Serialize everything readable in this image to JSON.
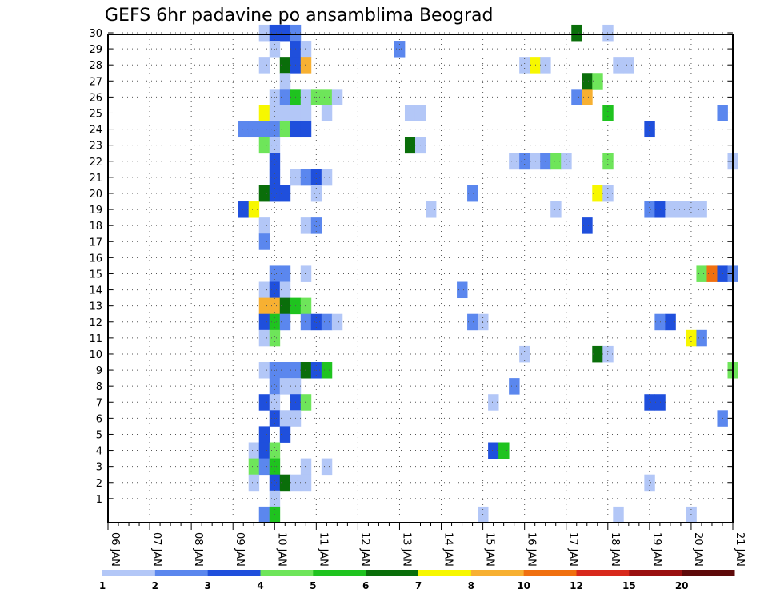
{
  "chart_data": {
    "type": "heatmap",
    "title": "GEFS 6hr padavine po ansamblima Beograd",
    "xlabel": "",
    "ylabel": "",
    "y_ticks": [
      "1",
      "2",
      "3",
      "4",
      "5",
      "6",
      "7",
      "8",
      "9",
      "10",
      "11",
      "12",
      "13",
      "14",
      "15",
      "16",
      "17",
      "18",
      "19",
      "20",
      "21",
      "22",
      "23",
      "24",
      "25",
      "26",
      "27",
      "28",
      "29",
      "30"
    ],
    "x_ticks": [
      "06 JAN",
      "07 JAN",
      "08 JAN",
      "09 JAN",
      "10 JAN",
      "11 JAN",
      "12 JAN",
      "13 JAN",
      "14 JAN",
      "15 JAN",
      "16 JAN",
      "17 JAN",
      "18 JAN",
      "19 JAN",
      "20 JAN",
      "21 JAN"
    ],
    "x_range_6h_steps": [
      0,
      60
    ],
    "y_range_members": [
      0,
      30
    ],
    "grid": true,
    "colorbar": {
      "levels": [
        "1",
        "2",
        "3",
        "4",
        "5",
        "6",
        "7",
        "8",
        "10",
        "12",
        "15",
        "20"
      ],
      "colors": [
        "#b3c7f7",
        "#5b87ee",
        "#1f4fdc",
        "#6ee55a",
        "#1fc31f",
        "#0a6e0a",
        "#f7f700",
        "#f7b032",
        "#f07010",
        "#d8291c",
        "#9a1010",
        "#5e0a0a"
      ]
    },
    "cells_format": "[x_6h_step, ensemble_member, color_class]",
    "cells": [
      [
        15,
        30,
        1
      ],
      [
        16,
        30,
        3
      ],
      [
        17,
        30,
        3
      ],
      [
        18,
        30,
        2
      ],
      [
        45,
        30,
        6
      ],
      [
        48,
        30,
        1
      ],
      [
        16,
        29,
        1
      ],
      [
        18,
        29,
        3
      ],
      [
        19,
        29,
        1
      ],
      [
        28,
        29,
        2
      ],
      [
        15,
        28,
        1
      ],
      [
        17,
        28,
        6
      ],
      [
        18,
        28,
        3
      ],
      [
        19,
        28,
        8
      ],
      [
        40,
        28,
        1
      ],
      [
        41,
        28,
        7
      ],
      [
        42,
        28,
        1
      ],
      [
        49,
        28,
        1
      ],
      [
        50,
        28,
        1
      ],
      [
        17,
        27,
        1
      ],
      [
        46,
        27,
        6
      ],
      [
        47,
        27,
        4
      ],
      [
        16,
        26,
        1
      ],
      [
        17,
        26,
        2
      ],
      [
        18,
        26,
        5
      ],
      [
        19,
        26,
        1
      ],
      [
        20,
        26,
        4
      ],
      [
        21,
        26,
        4
      ],
      [
        22,
        26,
        1
      ],
      [
        45,
        26,
        2
      ],
      [
        46,
        26,
        8
      ],
      [
        15,
        25,
        7
      ],
      [
        16,
        25,
        1
      ],
      [
        17,
        25,
        1
      ],
      [
        18,
        25,
        1
      ],
      [
        19,
        25,
        1
      ],
      [
        21,
        25,
        1
      ],
      [
        29,
        25,
        1
      ],
      [
        30,
        25,
        1
      ],
      [
        48,
        25,
        5
      ],
      [
        59,
        25,
        2
      ],
      [
        13,
        24,
        2
      ],
      [
        14,
        24,
        2
      ],
      [
        15,
        24,
        2
      ],
      [
        16,
        24,
        2
      ],
      [
        17,
        24,
        4
      ],
      [
        18,
        24,
        3
      ],
      [
        19,
        24,
        3
      ],
      [
        52,
        24,
        3
      ],
      [
        15,
        23,
        4
      ],
      [
        16,
        23,
        1
      ],
      [
        29,
        23,
        6
      ],
      [
        30,
        23,
        1
      ],
      [
        16,
        22,
        3
      ],
      [
        39,
        22,
        1
      ],
      [
        40,
        22,
        2
      ],
      [
        41,
        22,
        1
      ],
      [
        42,
        22,
        2
      ],
      [
        43,
        22,
        4
      ],
      [
        44,
        22,
        1
      ],
      [
        48,
        22,
        4
      ],
      [
        60,
        22,
        1
      ],
      [
        16,
        21,
        3
      ],
      [
        18,
        21,
        1
      ],
      [
        19,
        21,
        2
      ],
      [
        20,
        21,
        3
      ],
      [
        21,
        21,
        1
      ],
      [
        15,
        20,
        6
      ],
      [
        16,
        20,
        3
      ],
      [
        17,
        20,
        3
      ],
      [
        20,
        20,
        1
      ],
      [
        35,
        20,
        2
      ],
      [
        47,
        20,
        7
      ],
      [
        48,
        20,
        1
      ],
      [
        13,
        19,
        3
      ],
      [
        14,
        19,
        7
      ],
      [
        31,
        19,
        1
      ],
      [
        43,
        19,
        1
      ],
      [
        52,
        19,
        2
      ],
      [
        53,
        19,
        3
      ],
      [
        54,
        19,
        1
      ],
      [
        55,
        19,
        1
      ],
      [
        56,
        19,
        1
      ],
      [
        57,
        19,
        1
      ],
      [
        15,
        18,
        1
      ],
      [
        19,
        18,
        1
      ],
      [
        20,
        18,
        2
      ],
      [
        46,
        18,
        3
      ],
      [
        15,
        17,
        2
      ],
      [
        16,
        15,
        2
      ],
      [
        17,
        15,
        2
      ],
      [
        19,
        15,
        1
      ],
      [
        57,
        15,
        4
      ],
      [
        58,
        15,
        9
      ],
      [
        59,
        15,
        3
      ],
      [
        60,
        15,
        2
      ],
      [
        15,
        14,
        1
      ],
      [
        16,
        14,
        3
      ],
      [
        17,
        14,
        1
      ],
      [
        34,
        14,
        2
      ],
      [
        15,
        13,
        8
      ],
      [
        16,
        13,
        8
      ],
      [
        17,
        13,
        6
      ],
      [
        18,
        13,
        5
      ],
      [
        19,
        13,
        4
      ],
      [
        15,
        12,
        3
      ],
      [
        16,
        12,
        5
      ],
      [
        17,
        12,
        2
      ],
      [
        19,
        12,
        2
      ],
      [
        20,
        12,
        3
      ],
      [
        21,
        12,
        2
      ],
      [
        22,
        12,
        1
      ],
      [
        35,
        12,
        2
      ],
      [
        36,
        12,
        1
      ],
      [
        53,
        12,
        2
      ],
      [
        54,
        12,
        3
      ],
      [
        15,
        11,
        1
      ],
      [
        16,
        11,
        4
      ],
      [
        56,
        11,
        7
      ],
      [
        57,
        11,
        2
      ],
      [
        40,
        10,
        1
      ],
      [
        47,
        10,
        6
      ],
      [
        48,
        10,
        1
      ],
      [
        15,
        9,
        1
      ],
      [
        16,
        9,
        2
      ],
      [
        17,
        9,
        2
      ],
      [
        18,
        9,
        2
      ],
      [
        19,
        9,
        6
      ],
      [
        20,
        9,
        3
      ],
      [
        21,
        9,
        5
      ],
      [
        60,
        9,
        4
      ],
      [
        16,
        8,
        2
      ],
      [
        17,
        8,
        1
      ],
      [
        18,
        8,
        1
      ],
      [
        39,
        8,
        2
      ],
      [
        15,
        7,
        3
      ],
      [
        16,
        7,
        1
      ],
      [
        18,
        7,
        3
      ],
      [
        19,
        7,
        4
      ],
      [
        37,
        7,
        1
      ],
      [
        52,
        7,
        3
      ],
      [
        53,
        7,
        3
      ],
      [
        16,
        6,
        3
      ],
      [
        17,
        6,
        1
      ],
      [
        18,
        6,
        1
      ],
      [
        59,
        6,
        2
      ],
      [
        15,
        5,
        3
      ],
      [
        17,
        5,
        3
      ],
      [
        14,
        4,
        1
      ],
      [
        15,
        4,
        3
      ],
      [
        16,
        4,
        4
      ],
      [
        37,
        4,
        3
      ],
      [
        38,
        4,
        5
      ],
      [
        14,
        3,
        4
      ],
      [
        15,
        3,
        2
      ],
      [
        16,
        3,
        5
      ],
      [
        19,
        3,
        1
      ],
      [
        21,
        3,
        1
      ],
      [
        14,
        2,
        1
      ],
      [
        16,
        2,
        3
      ],
      [
        17,
        2,
        6
      ],
      [
        18,
        2,
        1
      ],
      [
        19,
        2,
        1
      ],
      [
        52,
        2,
        1
      ],
      [
        16,
        1,
        1
      ],
      [
        15,
        0,
        2
      ],
      [
        16,
        0,
        5
      ],
      [
        36,
        0,
        1
      ],
      [
        49,
        0,
        1
      ],
      [
        56,
        0,
        1
      ]
    ]
  }
}
